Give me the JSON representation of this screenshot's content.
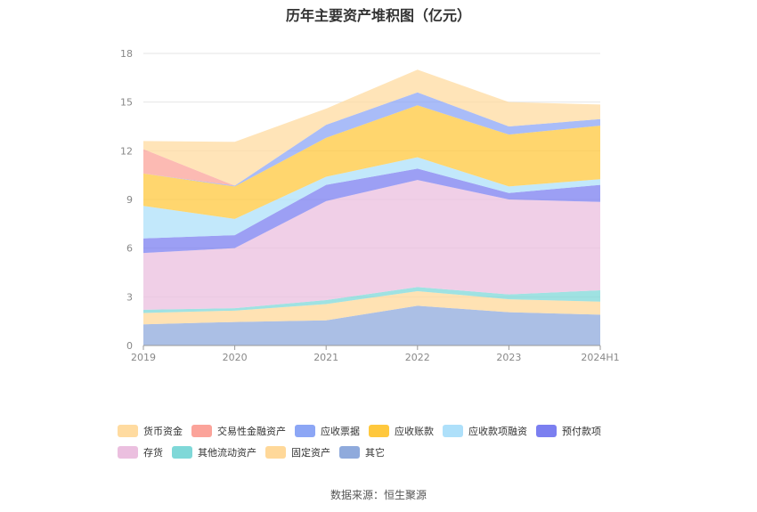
{
  "chart_data": {
    "type": "area",
    "stacked": true,
    "title": "历年主要资产堆积图（亿元）",
    "categories": [
      "2019",
      "2020",
      "2021",
      "2022",
      "2023",
      "2024H1"
    ],
    "ylim": [
      0,
      18
    ],
    "yticks": [
      0,
      3,
      6,
      9,
      12,
      15,
      18
    ],
    "grid": true,
    "legend_position": "bottom",
    "series": [
      {
        "name": "其它",
        "color": "#8faadc",
        "values": [
          1.3,
          1.45,
          1.55,
          2.45,
          2.05,
          1.9
        ]
      },
      {
        "name": "固定资产",
        "color": "#ffd899",
        "values": [
          0.7,
          0.7,
          1.0,
          0.9,
          0.8,
          0.8
        ]
      },
      {
        "name": "其他流动资产",
        "color": "#7fd8d8",
        "values": [
          0.2,
          0.15,
          0.25,
          0.25,
          0.3,
          0.7
        ]
      },
      {
        "name": "存货",
        "color": "#ebbfdf",
        "values": [
          3.5,
          3.7,
          6.1,
          6.6,
          5.85,
          5.45
        ]
      },
      {
        "name": "预付款项",
        "color": "#7b7ff0",
        "values": [
          0.9,
          0.8,
          1.0,
          0.7,
          0.4,
          1.05
        ]
      },
      {
        "name": "应收款项融资",
        "color": "#aee0fa",
        "values": [
          2.0,
          1.0,
          0.5,
          0.7,
          0.4,
          0.35
        ]
      },
      {
        "name": "应收账款",
        "color": "#ffc83d",
        "values": [
          2.0,
          2.0,
          2.4,
          3.2,
          3.2,
          3.3
        ]
      },
      {
        "name": "应收票据",
        "color": "#8ca6f5",
        "values": [
          0.0,
          0.05,
          0.8,
          0.8,
          0.5,
          0.4
        ]
      },
      {
        "name": "交易性金融资产",
        "color": "#fba39a",
        "values": [
          1.5,
          0.0,
          0.0,
          0.0,
          0.0,
          0.0
        ]
      },
      {
        "name": "货币资金",
        "color": "#ffdba0",
        "values": [
          0.5,
          2.7,
          1.0,
          1.4,
          1.5,
          0.9
        ]
      }
    ]
  },
  "legend": {
    "rows": [
      [
        "货币资金",
        "交易性金融资产",
        "应收票据",
        "应收账款",
        "应收款项融资",
        "预付款项"
      ],
      [
        "存货",
        "其他流动资产",
        "固定资产",
        "其它"
      ]
    ]
  },
  "source_note": "数据来源：恒生聚源"
}
